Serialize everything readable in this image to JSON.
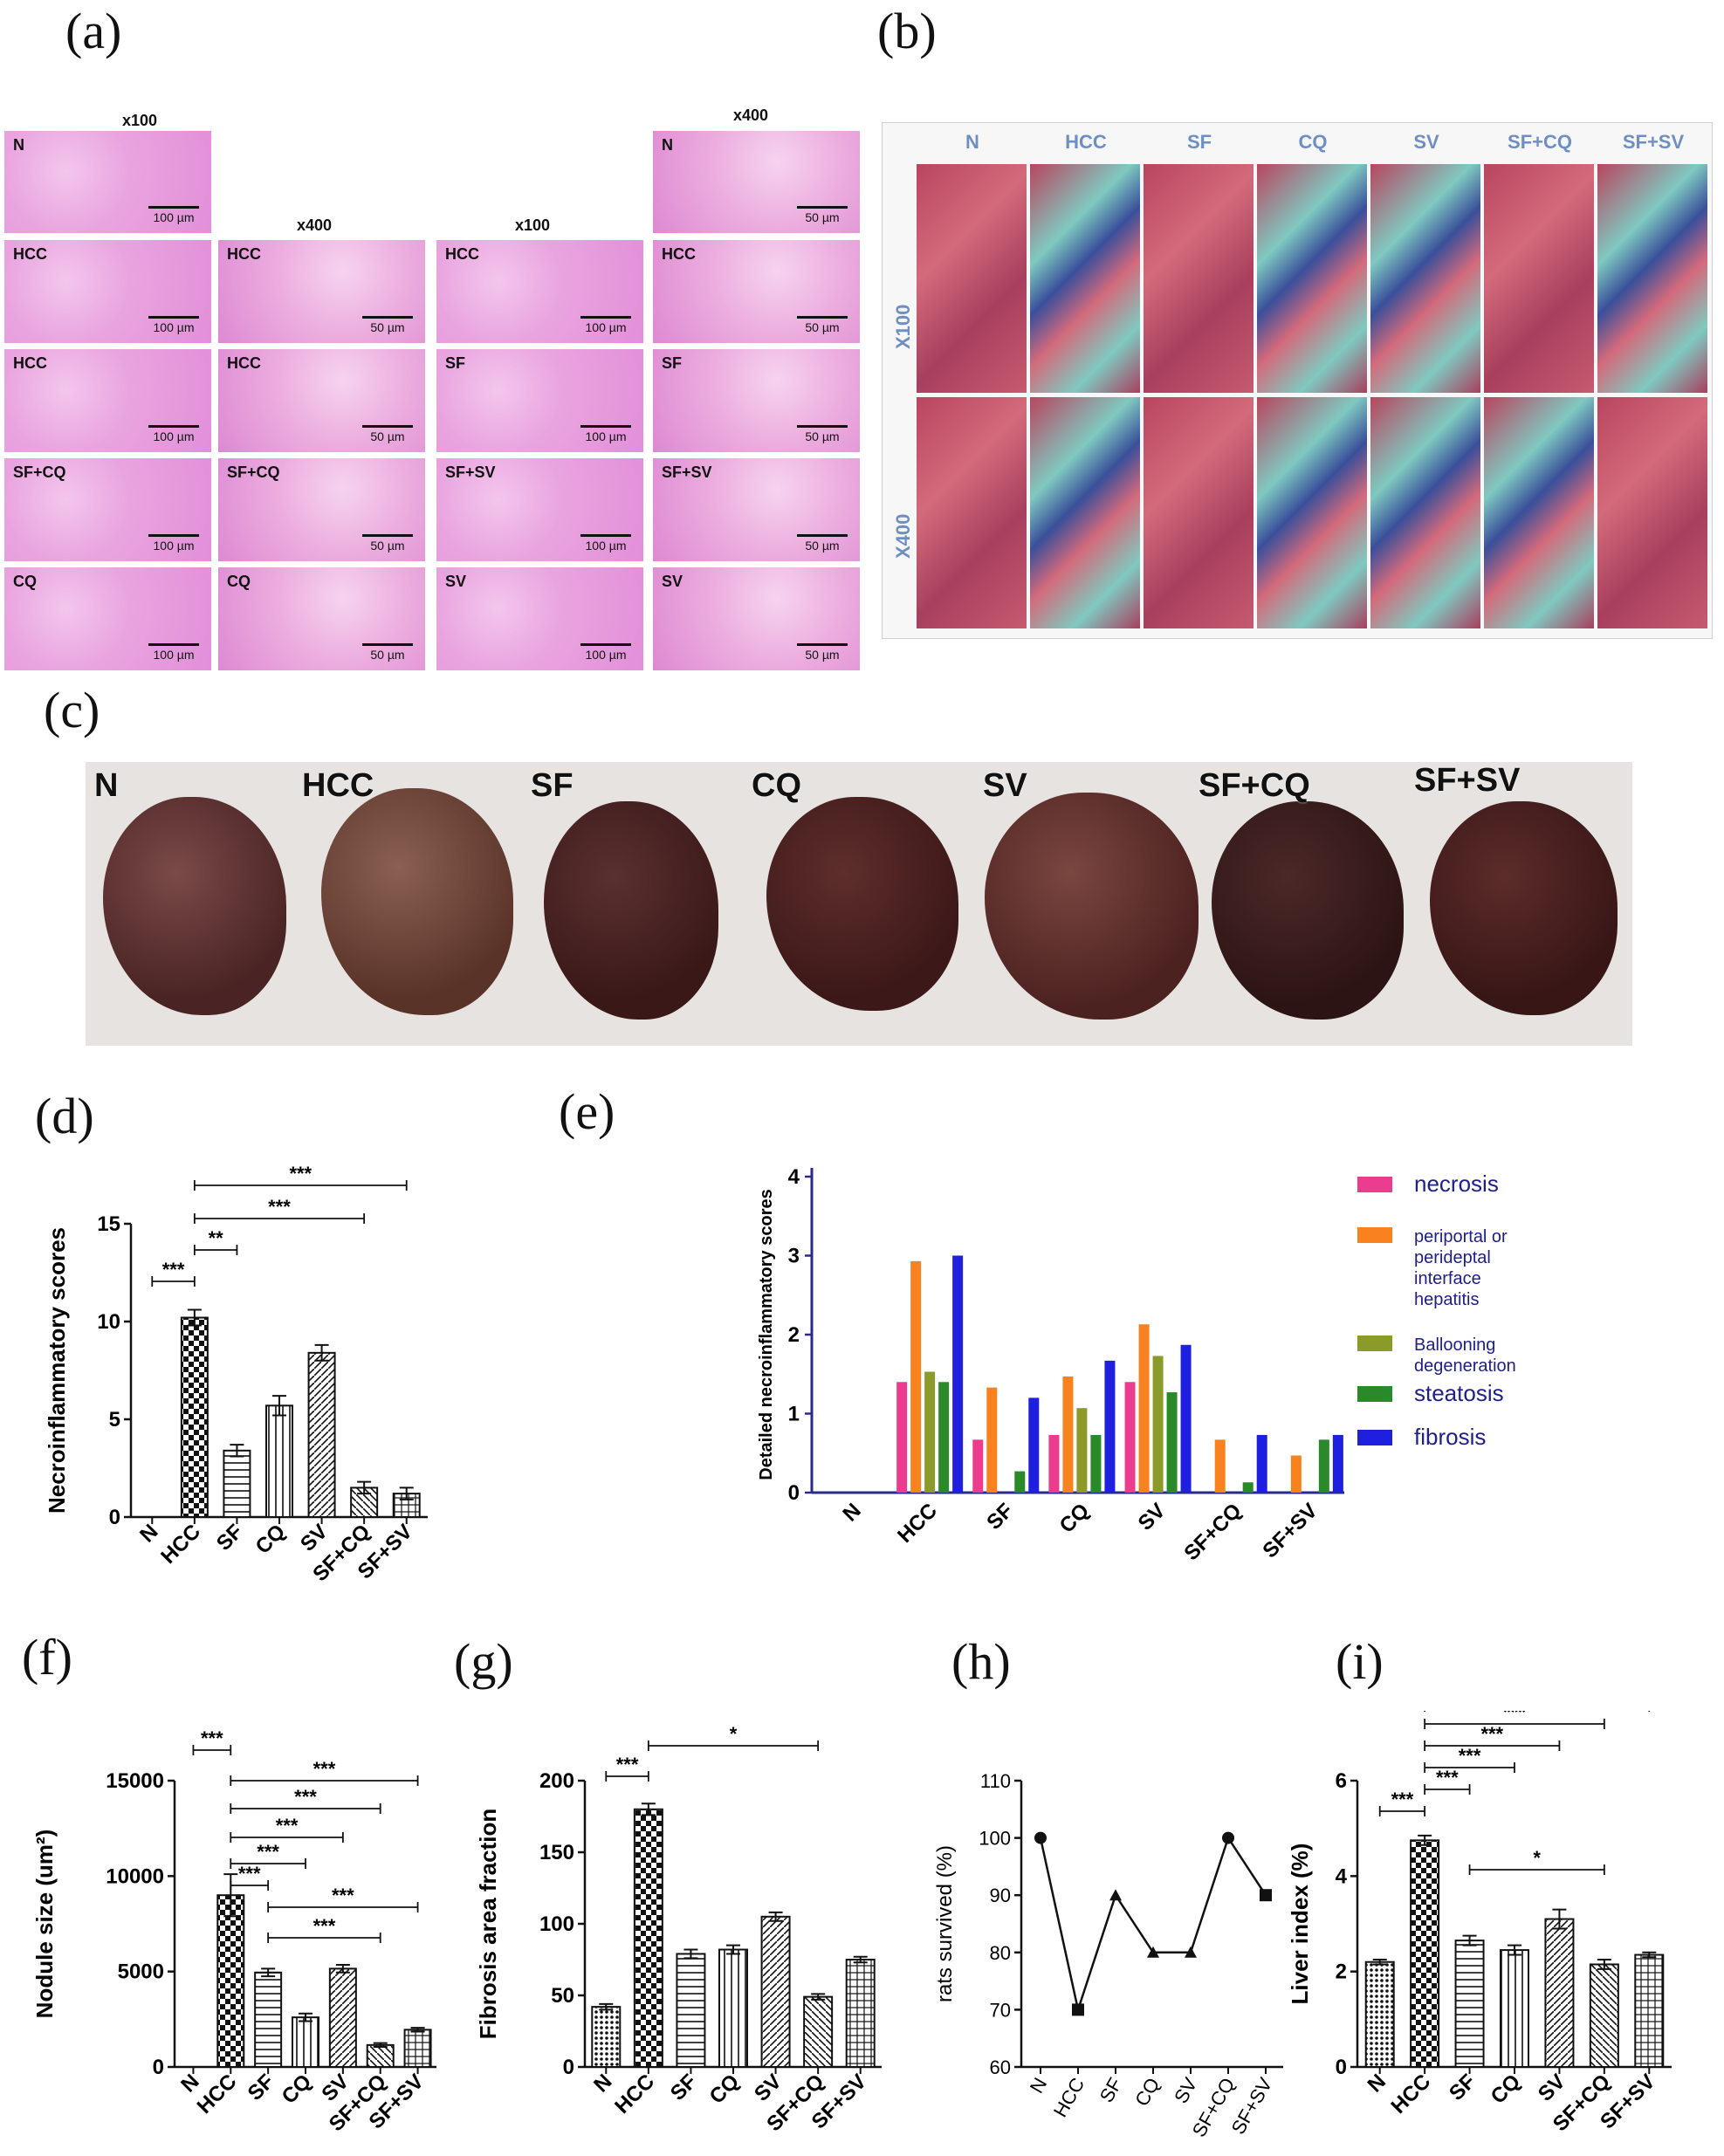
{
  "panels": {
    "a": "(a)",
    "b": "(b)",
    "c": "(c)",
    "d": "(d)",
    "e": "(e)",
    "f": "(f)",
    "g": "(g)",
    "h": "(h)",
    "i": "(i)"
  },
  "panel_a": {
    "mag_x100_left": "x100",
    "mag_x400_mid": "x400",
    "mag_x100_right": "x100",
    "mag_x400_right": "x400",
    "tiles": [
      {
        "label": "N",
        "scale": "100 µm"
      },
      {
        "label": "HCC",
        "scale": "100 µm"
      },
      {
        "label": "HCC",
        "scale": "100 µm"
      },
      {
        "label": "SF+CQ",
        "scale": "100 µm"
      },
      {
        "label": "CQ",
        "scale": "100 µm"
      },
      {
        "label": "HCC",
        "scale": "50 µm"
      },
      {
        "label": "HCC",
        "scale": "50 µm"
      },
      {
        "label": "SF+CQ",
        "scale": "50 µm"
      },
      {
        "label": "CQ",
        "scale": "50 µm"
      },
      {
        "label": "HCC",
        "scale": "100 µm"
      },
      {
        "label": "SF",
        "scale": "100 µm"
      },
      {
        "label": "SF+SV",
        "scale": "100 µm"
      },
      {
        "label": "SV",
        "scale": "100 µm"
      },
      {
        "label": "N",
        "scale": "50 µm"
      },
      {
        "label": "HCC",
        "scale": "50 µm"
      },
      {
        "label": "SF",
        "scale": "50 µm"
      },
      {
        "label": "SF+SV",
        "scale": "50 µm"
      },
      {
        "label": "SV",
        "scale": "50 µm"
      }
    ]
  },
  "panel_b": {
    "columns": [
      "N",
      "HCC",
      "SF",
      "CQ",
      "SV",
      "SF+CQ",
      "SF+SV"
    ],
    "rows": [
      "X100",
      "X400"
    ]
  },
  "panel_c": {
    "labels": [
      "N",
      "HCC",
      "SF",
      "CQ",
      "SV",
      "SF+CQ",
      "SF+SV"
    ]
  },
  "chart_data": [
    {
      "id": "d",
      "type": "bar",
      "ylabel": "Necroinflammatory scores",
      "categories": [
        "N",
        "HCC",
        "SF",
        "CQ",
        "SV",
        "SF+CQ",
        "SF+SV"
      ],
      "values": [
        0,
        10.2,
        3.4,
        5.7,
        8.4,
        1.5,
        1.2
      ],
      "errors": [
        0,
        0.4,
        0.3,
        0.5,
        0.4,
        0.3,
        0.3
      ],
      "ylim": [
        0,
        15
      ],
      "yticks": [
        0,
        5,
        10,
        15
      ],
      "significance": [
        {
          "label": "***",
          "from": "N",
          "to": "HCC"
        },
        {
          "label": "**",
          "from": "HCC",
          "to": "SF"
        },
        {
          "label": "***",
          "from": "HCC",
          "to": "SF+CQ"
        },
        {
          "label": "***",
          "from": "HCC",
          "to": "SF+SV"
        }
      ]
    },
    {
      "id": "e",
      "type": "bar",
      "ylabel": "Detailed necroinflammatory scores",
      "categories": [
        "N",
        "HCC",
        "SF",
        "CQ",
        "SV",
        "SF+CQ",
        "SF+SV"
      ],
      "ylim": [
        0,
        4
      ],
      "yticks": [
        0,
        1,
        2,
        3,
        4
      ],
      "series": [
        {
          "name": "necrosis",
          "color": "#ec3c8e",
          "values": [
            0,
            1.4,
            0.67,
            0.73,
            1.4,
            0,
            0
          ]
        },
        {
          "name": "periportal or perideptal interface hepatitis",
          "color": "#f7821f",
          "values": [
            0,
            2.93,
            1.33,
            1.47,
            2.13,
            0.67,
            0.47
          ]
        },
        {
          "name": "Ballooning degeneration",
          "color": "#8c9a2a",
          "values": [
            0,
            1.53,
            0,
            1.07,
            1.73,
            0,
            0
          ]
        },
        {
          "name": "steatosis",
          "color": "#2a8a2a",
          "values": [
            0,
            1.4,
            0.27,
            0.73,
            1.27,
            0.13,
            0.67
          ]
        },
        {
          "name": "fibrosis",
          "color": "#1f1fe0",
          "values": [
            0,
            3.0,
            1.2,
            1.67,
            1.87,
            0.73,
            0.73
          ]
        }
      ]
    },
    {
      "id": "f",
      "type": "bar",
      "ylabel": "Nodule size (um²)",
      "categories": [
        "N",
        "HCC",
        "SF",
        "CQ",
        "SV",
        "SF+CQ",
        "SF+SV"
      ],
      "values": [
        0,
        9000,
        4950,
        2600,
        5150,
        1150,
        1950
      ],
      "errors": [
        0,
        1100,
        200,
        200,
        200,
        100,
        100
      ],
      "ylim": [
        0,
        15000
      ],
      "yticks": [
        0,
        5000,
        10000,
        15000
      ],
      "significance": [
        {
          "label": "***",
          "from": "N",
          "to": "HCC"
        },
        {
          "label": "***",
          "from": "HCC",
          "to": "SF"
        },
        {
          "label": "***",
          "from": "HCC",
          "to": "CQ"
        },
        {
          "label": "***",
          "from": "HCC",
          "to": "SV"
        },
        {
          "label": "***",
          "from": "HCC",
          "to": "SF+CQ"
        },
        {
          "label": "***",
          "from": "HCC",
          "to": "SF+SV"
        },
        {
          "label": "***",
          "from": "SF",
          "to": "SF+CQ"
        },
        {
          "label": "***",
          "from": "SF",
          "to": "SF+SV"
        }
      ]
    },
    {
      "id": "g",
      "type": "bar",
      "ylabel": "Fibrosis area fraction",
      "categories": [
        "N",
        "HCC",
        "SF",
        "CQ",
        "SV",
        "SF+CQ",
        "SF+SV"
      ],
      "values": [
        42,
        180,
        79,
        82,
        105,
        49,
        75
      ],
      "errors": [
        2,
        4,
        3,
        3,
        3,
        2,
        2
      ],
      "ylim": [
        0,
        200
      ],
      "yticks": [
        0,
        50,
        100,
        150,
        200
      ],
      "significance": [
        {
          "label": "***",
          "from": "N",
          "to": "HCC"
        },
        {
          "label": "*",
          "from": "HCC",
          "to": "SF+CQ"
        }
      ]
    },
    {
      "id": "h",
      "type": "line",
      "ylabel": "rats survived (%)",
      "categories": [
        "N",
        "HCC",
        "SF",
        "CQ",
        "SV",
        "SF+CQ",
        "SF+SV"
      ],
      "values": [
        100,
        70,
        90,
        80,
        80,
        100,
        90
      ],
      "ylim": [
        60,
        110
      ],
      "yticks": [
        60,
        70,
        80,
        90,
        100,
        110
      ]
    },
    {
      "id": "i",
      "type": "bar",
      "ylabel": "Liver index (%)",
      "categories": [
        "N",
        "HCC",
        "SF",
        "CQ",
        "SV",
        "SF+CQ",
        "SF+SV"
      ],
      "values": [
        2.2,
        4.75,
        2.65,
        2.45,
        3.1,
        2.15,
        2.35
      ],
      "errors": [
        0.05,
        0.1,
        0.1,
        0.1,
        0.2,
        0.1,
        0.05
      ],
      "ylim": [
        0,
        6
      ],
      "yticks": [
        0,
        2,
        4,
        6
      ],
      "significance": [
        {
          "label": "***",
          "from": "N",
          "to": "HCC"
        },
        {
          "label": "***",
          "from": "HCC",
          "to": "SF"
        },
        {
          "label": "***",
          "from": "HCC",
          "to": "CQ"
        },
        {
          "label": "***",
          "from": "HCC",
          "to": "SV"
        },
        {
          "label": "***",
          "from": "HCC",
          "to": "SF+CQ"
        },
        {
          "label": "***",
          "from": "HCC",
          "to": "SF+SV"
        },
        {
          "label": "*",
          "from": "SF",
          "to": "SF+CQ"
        }
      ]
    }
  ]
}
